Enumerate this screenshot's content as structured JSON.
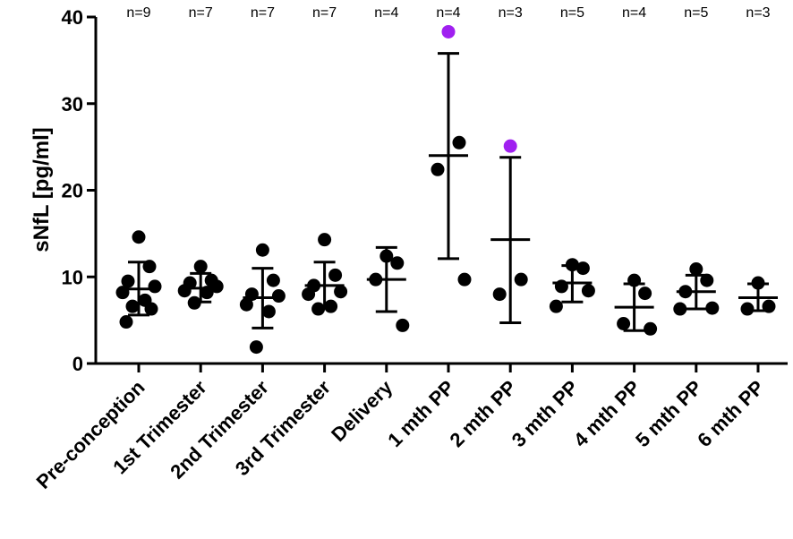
{
  "chart_data": {
    "type": "scatter",
    "title": "",
    "xlabel": "",
    "ylabel": "sNfL [pg/ml]",
    "ylim": [
      0,
      40
    ],
    "yticks": [
      0,
      10,
      20,
      30,
      40
    ],
    "grid": false,
    "colors": {
      "default": "#000000",
      "highlight": "#a020f0"
    },
    "categories": [
      {
        "label": "Pre-conception",
        "n_label": "n=9",
        "mean": 8.6,
        "sd_low": 5.6,
        "sd_high": 11.7,
        "points": [
          {
            "v": 14.6
          },
          {
            "v": 11.2
          },
          {
            "v": 9.5
          },
          {
            "v": 8.9
          },
          {
            "v": 8.2
          },
          {
            "v": 7.3
          },
          {
            "v": 6.6
          },
          {
            "v": 6.3
          },
          {
            "v": 4.8
          }
        ]
      },
      {
        "label": "1st Trimester",
        "n_label": "n=7",
        "mean": 8.7,
        "sd_low": 7.1,
        "sd_high": 10.4,
        "points": [
          {
            "v": 11.2
          },
          {
            "v": 9.6
          },
          {
            "v": 9.3
          },
          {
            "v": 8.9
          },
          {
            "v": 8.4
          },
          {
            "v": 8.2
          },
          {
            "v": 7.0
          }
        ]
      },
      {
        "label": "2nd Trimester",
        "n_label": "n=7",
        "mean": 7.6,
        "sd_low": 4.1,
        "sd_high": 11.0,
        "points": [
          {
            "v": 13.1
          },
          {
            "v": 9.6
          },
          {
            "v": 8.0
          },
          {
            "v": 7.8
          },
          {
            "v": 6.8
          },
          {
            "v": 6.0
          },
          {
            "v": 1.9
          }
        ]
      },
      {
        "label": "3rd Trimester",
        "n_label": "n=7",
        "mean": 9.0,
        "sd_low": 6.4,
        "sd_high": 11.7,
        "points": [
          {
            "v": 14.3
          },
          {
            "v": 10.2
          },
          {
            "v": 9.0
          },
          {
            "v": 8.3
          },
          {
            "v": 8.0
          },
          {
            "v": 6.6
          },
          {
            "v": 6.3
          }
        ]
      },
      {
        "label": "Delivery",
        "n_label": "n=4",
        "mean": 9.7,
        "sd_low": 6.0,
        "sd_high": 13.4,
        "points": [
          {
            "v": 12.4
          },
          {
            "v": 11.6
          },
          {
            "v": 9.7
          },
          {
            "v": 4.4
          }
        ]
      },
      {
        "label": "1 mth PP",
        "n_label": "n=4",
        "mean": 24.0,
        "sd_low": 12.1,
        "sd_high": 35.8,
        "points": [
          {
            "v": 38.3,
            "highlight": true
          },
          {
            "v": 25.5,
            "highlight": false
          },
          {
            "v": 22.4,
            "highlight": false
          },
          {
            "v": 9.7,
            "highlight": false
          }
        ]
      },
      {
        "label": "2 mth PP",
        "n_label": "n=3",
        "mean": 14.3,
        "sd_low": 4.7,
        "sd_high": 23.8,
        "points": [
          {
            "v": 25.1,
            "highlight": true
          },
          {
            "v": 9.7
          },
          {
            "v": 8.0
          }
        ]
      },
      {
        "label": "3 mth PP",
        "n_label": "n=5",
        "mean": 9.3,
        "sd_low": 7.1,
        "sd_high": 11.3,
        "points": [
          {
            "v": 11.4
          },
          {
            "v": 11.0
          },
          {
            "v": 8.9
          },
          {
            "v": 8.4
          },
          {
            "v": 6.6
          }
        ]
      },
      {
        "label": "4 mth PP",
        "n_label": "n=4",
        "mean": 6.5,
        "sd_low": 3.8,
        "sd_high": 9.2,
        "points": [
          {
            "v": 9.6
          },
          {
            "v": 8.1
          },
          {
            "v": 4.6
          },
          {
            "v": 4.0
          }
        ]
      },
      {
        "label": "5 mth PP",
        "n_label": "n=5",
        "mean": 8.3,
        "sd_low": 6.3,
        "sd_high": 10.2,
        "points": [
          {
            "v": 10.9
          },
          {
            "v": 9.6
          },
          {
            "v": 8.3
          },
          {
            "v": 6.4
          },
          {
            "v": 6.3
          }
        ]
      },
      {
        "label": "6 mth PP",
        "n_label": "n=3",
        "mean": 7.6,
        "sd_low": 6.1,
        "sd_high": 9.2,
        "points": [
          {
            "v": 9.3
          },
          {
            "v": 6.6
          },
          {
            "v": 6.3
          }
        ]
      }
    ]
  }
}
